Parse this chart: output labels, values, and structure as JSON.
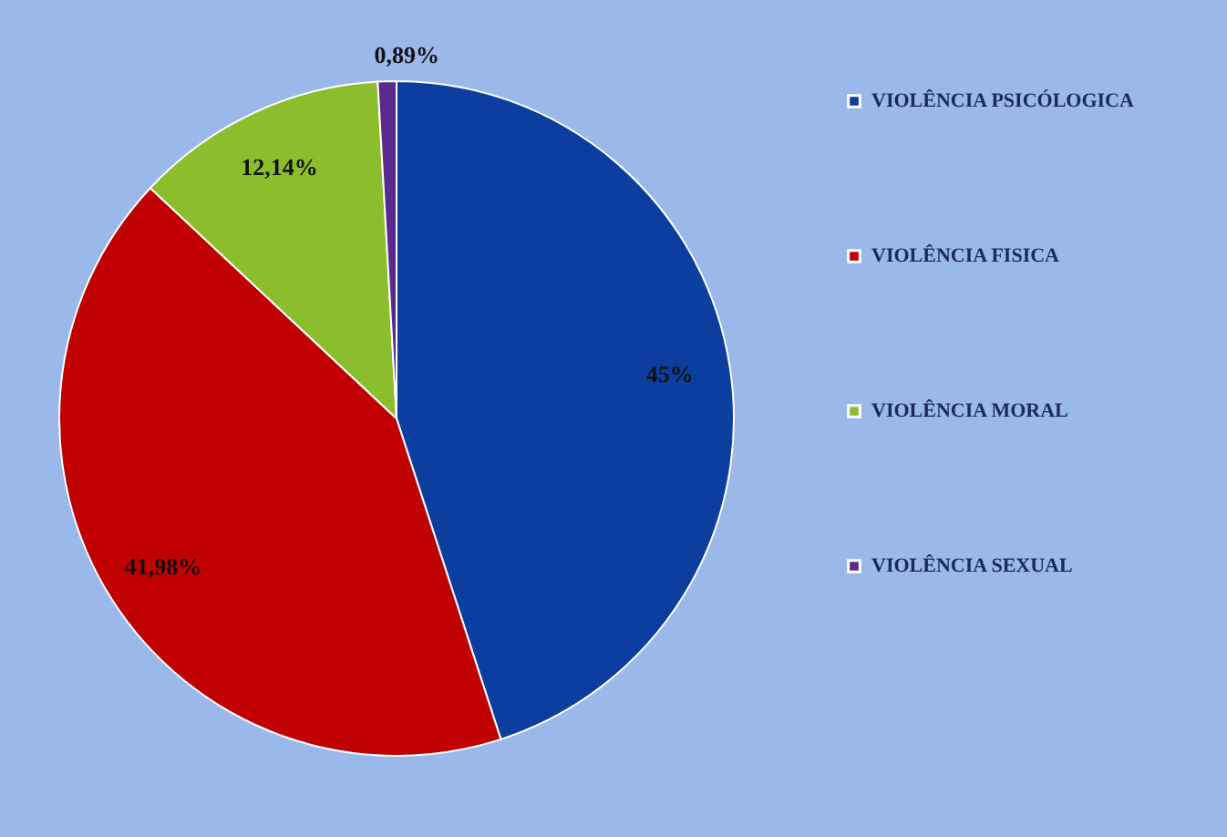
{
  "chart_data": {
    "type": "pie",
    "categories": [
      "VIOLÊNCIA PSICÓLOGICA",
      "VIOLÊNCIA FISICA",
      "VIOLÊNCIA MORAL",
      "VIOLÊNCIA SEXUAL"
    ],
    "values": [
      45,
      41.98,
      12.14,
      0.89
    ],
    "value_labels": [
      "45%",
      "41,98%",
      "12,14%",
      "0,89%"
    ],
    "colors": [
      "#0c3ea0",
      "#c00000",
      "#8cbd2c",
      "#5a2a8c"
    ],
    "legend": "right"
  }
}
